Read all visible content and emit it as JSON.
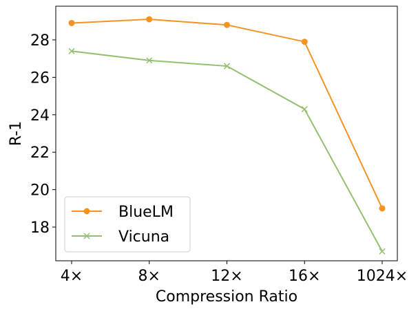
{
  "chart_data": {
    "type": "line",
    "title": "",
    "xlabel": "Compression Ratio",
    "ylabel": "R-1",
    "categories": [
      "4×",
      "8×",
      "12×",
      "16×",
      "1024×"
    ],
    "ylim": [
      16.2,
      29.8
    ],
    "yticks": [
      18,
      20,
      22,
      24,
      26,
      28
    ],
    "grid": false,
    "legend_position": "lower-left",
    "series": [
      {
        "name": "BlueLM",
        "values": [
          28.9,
          29.1,
          28.8,
          27.9,
          19.0
        ],
        "color": "#f39422",
        "marker": "circle"
      },
      {
        "name": "Vicuna",
        "values": [
          27.4,
          26.9,
          26.6,
          24.3,
          16.7
        ],
        "color": "#93c06e",
        "marker": "x"
      }
    ]
  }
}
